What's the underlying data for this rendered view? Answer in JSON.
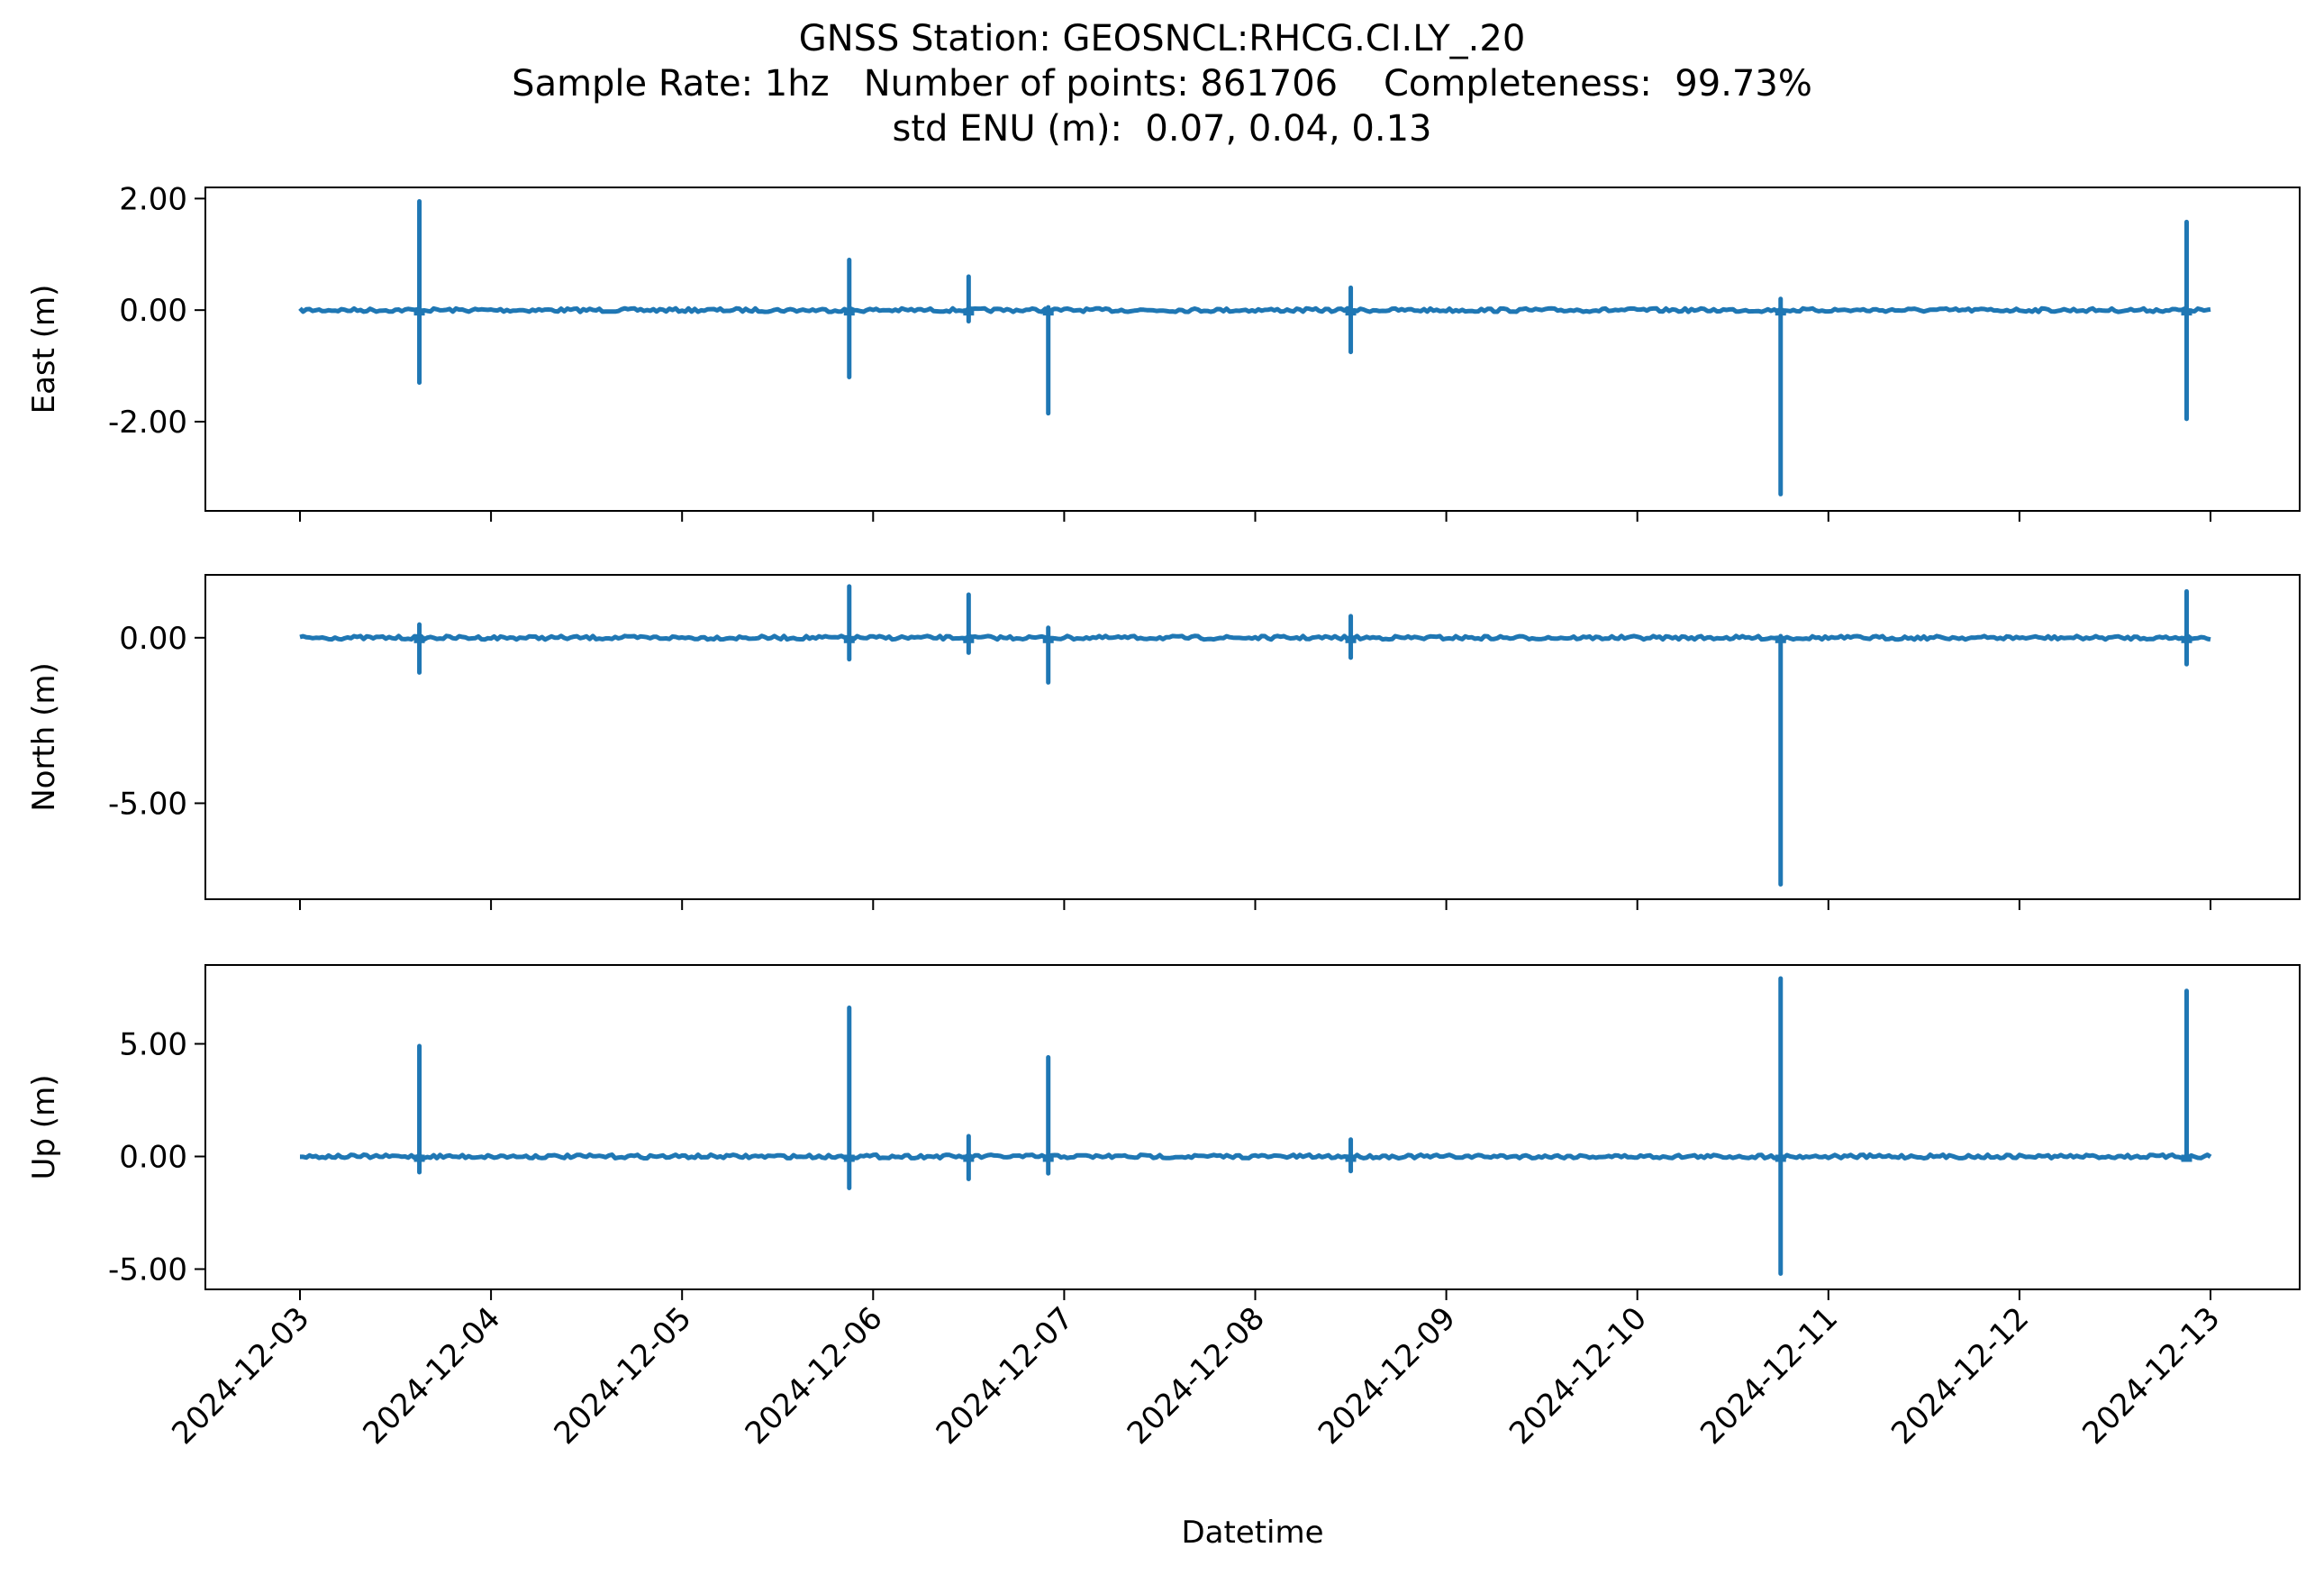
{
  "chart_data": {
    "type": "line",
    "title": "GNSS Station: GEOSNCL:RHCG.CI.LY_.20",
    "subtitle": "Sample Rate: 1hz   Number of points: 861706    Completeness:  99.73%",
    "subtitle2": "std ENU (m):  0.07, 0.04, 0.13",
    "xlabel": "Datetime",
    "x_ticks": [
      "2024-12-03",
      "2024-12-04",
      "2024-12-05",
      "2024-12-06",
      "2024-12-07",
      "2024-12-08",
      "2024-12-09",
      "2024-12-10",
      "2024-12-11",
      "2024-12-12",
      "2024-12-13"
    ],
    "x_range": [
      "2024-12-03T00:00",
      "2024-12-13T00:00"
    ],
    "line_color": "#1f77b4",
    "grid": false,
    "panels": [
      {
        "ylabel": "East (m)",
        "ylim": [
          -3.6,
          2.2
        ],
        "yticks": [
          2.0,
          0.0,
          -2.0
        ],
        "yticklabels": [
          "2.00",
          "0.00",
          "-2.00"
        ],
        "spikes": [
          {
            "t": "2024-12-03T15:00",
            "max": 1.95,
            "min": -1.3
          },
          {
            "t": "2024-12-05T21:00",
            "max": 0.9,
            "min": -1.2
          },
          {
            "t": "2024-12-06T12:00",
            "max": 0.6,
            "min": -0.2
          },
          {
            "t": "2024-12-06T22:00",
            "max": 0.05,
            "min": -1.85
          },
          {
            "t": "2024-12-08T12:00",
            "max": 0.4,
            "min": -0.75
          },
          {
            "t": "2024-12-10T18:00",
            "max": 0.2,
            "min": -3.3
          },
          {
            "t": "2024-12-12T21:00",
            "max": 1.58,
            "min": -1.95
          }
        ]
      },
      {
        "ylabel": "North (m)",
        "ylim": [
          -7.9,
          1.9
        ],
        "yticks": [
          0.0,
          -5.0
        ],
        "yticklabels": [
          "0.00",
          "-5.00"
        ],
        "spikes": [
          {
            "t": "2024-12-03T15:00",
            "max": 0.4,
            "min": -1.05
          },
          {
            "t": "2024-12-05T21:00",
            "max": 1.55,
            "min": -0.65
          },
          {
            "t": "2024-12-06T12:00",
            "max": 1.3,
            "min": -0.45
          },
          {
            "t": "2024-12-06T22:00",
            "max": 0.3,
            "min": -1.35
          },
          {
            "t": "2024-12-08T12:00",
            "max": 0.65,
            "min": -0.6
          },
          {
            "t": "2024-12-10T18:00",
            "max": 0.05,
            "min": -7.45
          },
          {
            "t": "2024-12-12T21:00",
            "max": 1.4,
            "min": -0.8
          }
        ]
      },
      {
        "ylabel": "Up (m)",
        "ylim": [
          -5.9,
          8.5
        ],
        "yticks": [
          5.0,
          0.0,
          -5.0
        ],
        "yticklabels": [
          "5.00",
          "0.00",
          "-5.00"
        ],
        "spikes": [
          {
            "t": "2024-12-03T15:00",
            "max": 4.9,
            "min": -0.7
          },
          {
            "t": "2024-12-05T21:00",
            "max": 6.6,
            "min": -1.4
          },
          {
            "t": "2024-12-06T12:00",
            "max": 0.9,
            "min": -1.0
          },
          {
            "t": "2024-12-06T22:00",
            "max": 4.4,
            "min": -0.75
          },
          {
            "t": "2024-12-08T12:00",
            "max": 0.75,
            "min": -0.65
          },
          {
            "t": "2024-12-10T18:00",
            "max": 7.9,
            "min": -5.2
          },
          {
            "t": "2024-12-12T21:00",
            "max": 7.35,
            "min": -0.1
          }
        ]
      }
    ]
  }
}
